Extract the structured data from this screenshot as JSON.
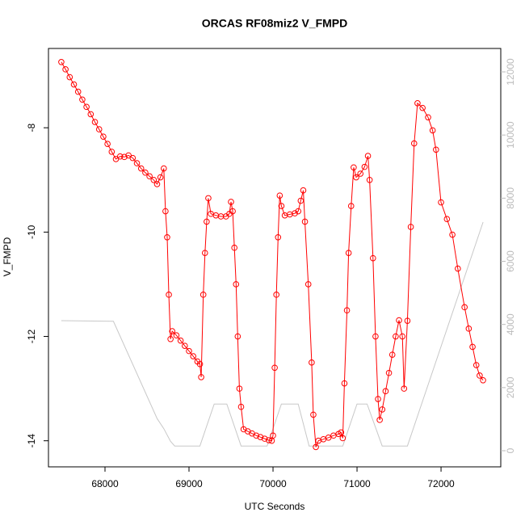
{
  "chart_data": {
    "type": "scatter",
    "title": "ORCAS RF08miz2 V_FMPD",
    "xlabel": "UTC Seconds",
    "ylabel": "V_FMPD",
    "xlim": [
      67327,
      72711
    ],
    "xticks": [
      68000,
      69000,
      70000,
      71000,
      72000
    ],
    "ylim": [
      -14.5,
      -6.48
    ],
    "yticks": [
      -14,
      -12,
      -10,
      -8
    ],
    "y2lim": [
      -511,
      12742
    ],
    "y2ticks": [
      0,
      2000,
      4000,
      6000,
      8000,
      10000,
      12000
    ],
    "series": [
      {
        "color": "#ff0000",
        "x": [
          67480,
          67530,
          67580,
          67630,
          67680,
          67730,
          67780,
          67830,
          67880,
          67930,
          67980,
          68030,
          68080,
          68130,
          68180,
          68230,
          68280,
          68330,
          68380,
          68430,
          68480,
          68530,
          68580,
          68620,
          68660,
          68700,
          68720,
          68740,
          68760,
          68780,
          68800,
          68850,
          68900,
          68950,
          69000,
          69050,
          69100,
          69130,
          69145,
          69170,
          69190,
          69210,
          69230,
          69260,
          69320,
          69380,
          69440,
          69480,
          69500,
          69520,
          69540,
          69560,
          69580,
          69600,
          69620,
          69650,
          69700,
          69750,
          69800,
          69850,
          69900,
          69950,
          69985,
          70000,
          70020,
          70040,
          70060,
          70080,
          70100,
          70140,
          70200,
          70260,
          70300,
          70330,
          70360,
          70380,
          70420,
          70460,
          70480,
          70510,
          70540,
          70600,
          70660,
          70720,
          70780,
          70810,
          70830,
          70850,
          70880,
          70900,
          70930,
          70960,
          70990,
          71040,
          71090,
          71130,
          71150,
          71190,
          71220,
          71250,
          71270,
          71300,
          71340,
          71380,
          71420,
          71460,
          71500,
          71540,
          71560,
          71600,
          71640,
          71680,
          71720,
          71780,
          71846,
          71900,
          71940,
          72000,
          72070,
          72135,
          72200,
          72280,
          72330,
          72375,
          72420,
          72460,
          72500
        ],
        "values": [
          -6.74,
          -6.88,
          -7.03,
          -7.17,
          -7.31,
          -7.46,
          -7.6,
          -7.74,
          -7.89,
          -8.03,
          -8.17,
          -8.31,
          -8.46,
          -8.6,
          -8.55,
          -8.56,
          -8.53,
          -8.58,
          -8.68,
          -8.78,
          -8.86,
          -8.93,
          -9.0,
          -9.08,
          -8.95,
          -8.78,
          -9.6,
          -10.1,
          -11.2,
          -12.05,
          -11.9,
          -11.98,
          -12.08,
          -12.18,
          -12.28,
          -12.38,
          -12.48,
          -12.53,
          -12.78,
          -11.2,
          -10.4,
          -9.8,
          -9.35,
          -9.65,
          -9.68,
          -9.7,
          -9.7,
          -9.65,
          -9.42,
          -9.6,
          -10.3,
          -11.0,
          -12.0,
          -13.0,
          -13.35,
          -13.78,
          -13.82,
          -13.86,
          -13.9,
          -13.93,
          -13.96,
          -13.99,
          -14.0,
          -13.9,
          -12.6,
          -11.2,
          -10.1,
          -9.3,
          -9.5,
          -9.68,
          -9.66,
          -9.64,
          -9.6,
          -9.4,
          -9.2,
          -9.8,
          -11.0,
          -12.5,
          -13.5,
          -14.12,
          -14.0,
          -13.97,
          -13.94,
          -13.9,
          -13.87,
          -13.84,
          -13.95,
          -12.9,
          -11.5,
          -10.4,
          -9.5,
          -8.76,
          -8.95,
          -8.88,
          -8.75,
          -8.54,
          -9.0,
          -10.5,
          -12.0,
          -13.2,
          -13.6,
          -13.4,
          -13.05,
          -12.7,
          -12.35,
          -12.0,
          -11.69,
          -12.0,
          -13.0,
          -11.7,
          -9.9,
          -8.3,
          -7.53,
          -7.62,
          -7.8,
          -8.05,
          -8.42,
          -9.43,
          -9.75,
          -10.05,
          -10.7,
          -11.44,
          -11.85,
          -12.2,
          -12.55,
          -12.75,
          -12.84
        ]
      },
      {
        "color": "#c8c8c8",
        "axis": "y2",
        "x": [
          67480,
          68100,
          68620,
          68700,
          68780,
          68830,
          69130,
          69300,
          69450,
          69620,
          69930,
          70100,
          70300,
          70430,
          70830,
          71000,
          71120,
          71300,
          71600,
          72500
        ],
        "values": [
          4120,
          4100,
          1020,
          700,
          300,
          150,
          150,
          1480,
          1480,
          150,
          150,
          1480,
          1480,
          150,
          150,
          1480,
          1480,
          150,
          150,
          7240
        ]
      }
    ]
  }
}
